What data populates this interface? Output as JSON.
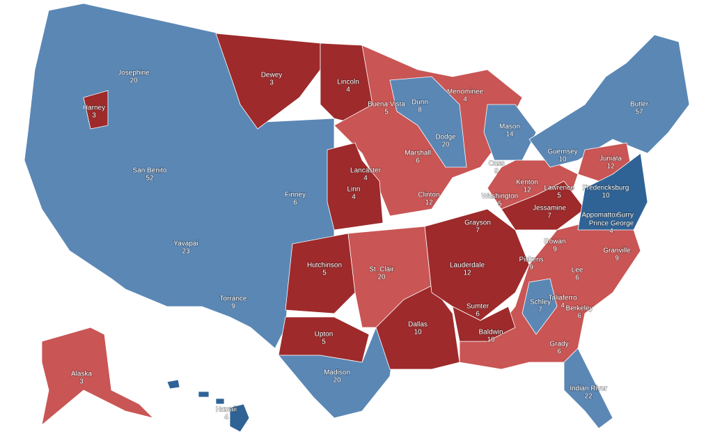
{
  "regions": [
    {
      "name": "Josephine",
      "value": 20,
      "color": "#5b87b5"
    },
    {
      "name": "Harney",
      "value": 3,
      "color": "#9e2a2b"
    },
    {
      "name": "Dewey",
      "value": 3,
      "color": "#9e2a2b"
    },
    {
      "name": "Lincoln",
      "value": 4,
      "color": "#9e2a2b"
    },
    {
      "name": "Buena Vista",
      "value": 5,
      "color": "#c95555"
    },
    {
      "name": "Dunn",
      "value": 8,
      "color": "#5b87b5"
    },
    {
      "name": "Menominee",
      "value": 4,
      "color": "#c95555"
    },
    {
      "name": "Butler",
      "value": 57,
      "color": "#5b87b5"
    },
    {
      "name": "San Benito",
      "value": 52,
      "color": "#5b87b5"
    },
    {
      "name": "Lancaster",
      "value": 4,
      "color": "#c95555"
    },
    {
      "name": "Marshall",
      "value": 6,
      "color": "#c95555"
    },
    {
      "name": "Dodge",
      "value": 20,
      "color": "#5b87b5"
    },
    {
      "name": "Mason",
      "value": 14,
      "color": "#5b87b5"
    },
    {
      "name": "Guernsey",
      "value": 10,
      "color": "#5b87b5"
    },
    {
      "name": "Juniata",
      "value": 12,
      "color": "#c95555"
    },
    {
      "name": "Cass",
      "value": 9,
      "color": "#c95555"
    },
    {
      "name": "Kenton",
      "value": 12,
      "color": "#c95555"
    },
    {
      "name": "Lawrence",
      "value": 5,
      "color": "#9e2a2b"
    },
    {
      "name": "Fredericksburg",
      "value": 10,
      "color": "#2f6396"
    },
    {
      "name": "Finney",
      "value": 6,
      "color": "#5b87b5"
    },
    {
      "name": "Linn",
      "value": 4,
      "color": "#9e2a2b"
    },
    {
      "name": "Clinton",
      "value": 12,
      "color": "#c95555"
    },
    {
      "name": "Washington",
      "value": 5,
      "color": "#c95555"
    },
    {
      "name": "Jessamine",
      "value": 7,
      "color": "#9e2a2b"
    },
    {
      "name": "Appomattox",
      "color": "#2f6396"
    },
    {
      "name": "Surry",
      "color": "#2f6396"
    },
    {
      "name": "Prince George",
      "value": 4,
      "color": "#2f6396"
    },
    {
      "name": "Yavapai",
      "value": 23,
      "color": "#5b87b5"
    },
    {
      "name": "Grayson",
      "value": 7,
      "color": "#9e2a2b"
    },
    {
      "name": "Rowan",
      "value": 9,
      "color": "#c95555"
    },
    {
      "name": "Granville",
      "value": 9,
      "color": "#c95555"
    },
    {
      "name": "Hutchinson",
      "value": 5,
      "color": "#9e2a2b"
    },
    {
      "name": "St. Clair",
      "value": 20,
      "color": "#c95555"
    },
    {
      "name": "Lauderdale",
      "value": 12,
      "color": "#9e2a2b"
    },
    {
      "name": "Pickens",
      "value": 9,
      "color": "#c95555"
    },
    {
      "name": "Lee",
      "value": 6,
      "color": "#c95555"
    },
    {
      "name": "Torrance",
      "value": 9,
      "color": "#5b87b5"
    },
    {
      "name": "Schley",
      "value": 7,
      "color": "#5b87b5"
    },
    {
      "name": "Taliaferro",
      "value": 4,
      "color": "#c95555"
    },
    {
      "name": "Berkeley",
      "value": 6,
      "color": "#c95555"
    },
    {
      "name": "Sumter",
      "value": 6,
      "color": "#9e2a2b"
    },
    {
      "name": "Dallas",
      "value": 10,
      "color": "#9e2a2b"
    },
    {
      "name": "Upton",
      "value": 5,
      "color": "#9e2a2b"
    },
    {
      "name": "Baldwin",
      "value": 10,
      "color": "#c95555"
    },
    {
      "name": "Grady",
      "value": 6,
      "color": "#c95555"
    },
    {
      "name": "Alaska",
      "value": 3,
      "color": "#c95555"
    },
    {
      "name": "Madison",
      "value": 20,
      "color": "#5b87b5"
    },
    {
      "name": "Indian River",
      "value": 22,
      "color": "#5b87b5"
    },
    {
      "name": "Hawaii",
      "value": 4,
      "color": "#2f6396"
    }
  ]
}
